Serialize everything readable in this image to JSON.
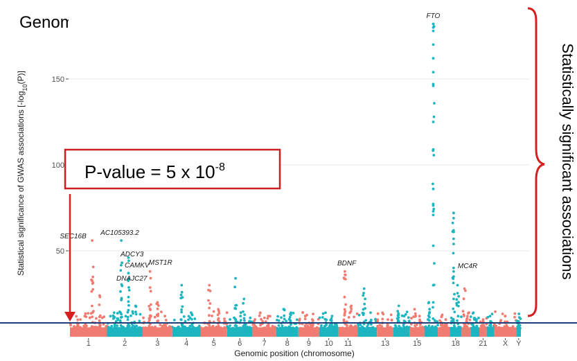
{
  "title": "Genome-wide association studies (GWAS)",
  "threshold_callout": {
    "prefix": "P-value = 5 x 10",
    "exponent": "-8",
    "box_color": "#cc1f1f",
    "arrow_color": "#d62020"
  },
  "side_annotation": {
    "text": "Statistically significant associations",
    "brace_color": "#d62020"
  },
  "colors": {
    "series_a": "#f07b70",
    "series_b": "#1cb5c0",
    "threshold_line": "#1f3d7a",
    "gridline": "#ebebeb"
  },
  "chart_data": {
    "type": "scatter",
    "subtype": "manhattan",
    "xlabel": "Genomic position (chromosome)",
    "ylabel_main": "Statistical significance of GWAS associations [-log",
    "ylabel_sub": "10",
    "ylabel_tail": "(P)]",
    "yticks": [
      50,
      100,
      150
    ],
    "ylim": [
      0,
      185
    ],
    "threshold": 7.3,
    "grid": true,
    "chromosomes": [
      {
        "name": "1",
        "label": "1",
        "peaks": [
          8,
          12,
          56,
          24
        ]
      },
      {
        "name": "2",
        "label": "2",
        "peaks": [
          14,
          56,
          46,
          18
        ]
      },
      {
        "name": "3",
        "label": "3",
        "peaks": [
          38,
          20,
          12
        ]
      },
      {
        "name": "4",
        "label": "4",
        "peaks": [
          30,
          14
        ]
      },
      {
        "name": "5",
        "label": "5",
        "peaks": [
          30,
          16
        ]
      },
      {
        "name": "6",
        "label": "6",
        "peaks": [
          34,
          22
        ]
      },
      {
        "name": "7",
        "label": "7",
        "peaks": [
          14,
          12
        ]
      },
      {
        "name": "8",
        "label": "8",
        "peaks": [
          16,
          14
        ]
      },
      {
        "name": "9",
        "label": "9",
        "peaks": [
          12,
          10
        ]
      },
      {
        "name": "10",
        "label": "10",
        "peaks": [
          14,
          12
        ]
      },
      {
        "name": "11",
        "label": "11",
        "peaks": [
          38,
          18
        ]
      },
      {
        "name": "12",
        "label": "",
        "peaks": [
          28,
          14
        ]
      },
      {
        "name": "13",
        "label": "13",
        "peaks": [
          14,
          10
        ]
      },
      {
        "name": "14",
        "label": "",
        "peaks": [
          18,
          12
        ]
      },
      {
        "name": "15",
        "label": "15",
        "peaks": [
          16,
          12
        ]
      },
      {
        "name": "16",
        "label": "",
        "peaks": [
          20,
          182
        ]
      },
      {
        "name": "17",
        "label": "",
        "peaks": [
          12,
          10
        ]
      },
      {
        "name": "18",
        "label": "18",
        "peaks": [
          72,
          30
        ]
      },
      {
        "name": "19",
        "label": "",
        "peaks": [
          28,
          12
        ]
      },
      {
        "name": "20",
        "label": "",
        "peaks": [
          14,
          10
        ]
      },
      {
        "name": "21",
        "label": "21",
        "peaks": [
          10
        ]
      },
      {
        "name": "22",
        "label": "",
        "peaks": [
          9
        ]
      },
      {
        "name": "X",
        "label": "X",
        "peaks": [
          12
        ]
      },
      {
        "name": "Y",
        "label": "Y",
        "peaks": [
          5
        ]
      }
    ],
    "gene_annotations": [
      {
        "gene": "SEC16B",
        "chromosome": "1",
        "value": 56
      },
      {
        "gene": "AC105393.2",
        "chromosome": "2",
        "value": 56
      },
      {
        "gene": "ADCY3",
        "chromosome": "2",
        "value": 46
      },
      {
        "gene": "CAMKV",
        "chromosome": "2",
        "value": 40
      },
      {
        "gene": "DNAJC27",
        "chromosome": "2",
        "value": 33
      },
      {
        "gene": "MST1R",
        "chromosome": "3",
        "value": 38
      },
      {
        "gene": "BDNF",
        "chromosome": "11",
        "value": 38
      },
      {
        "gene": "FTO",
        "chromosome": "16",
        "value": 182
      },
      {
        "gene": "MC4R",
        "chromosome": "18",
        "value": 40
      }
    ],
    "fto_points": [
      182,
      180,
      178,
      170,
      162,
      154,
      147,
      146,
      125,
      109,
      86,
      73,
      53,
      30,
      20
    ],
    "mc4r_points": [
      72,
      69,
      61,
      57,
      54,
      40,
      38,
      35,
      22
    ]
  }
}
